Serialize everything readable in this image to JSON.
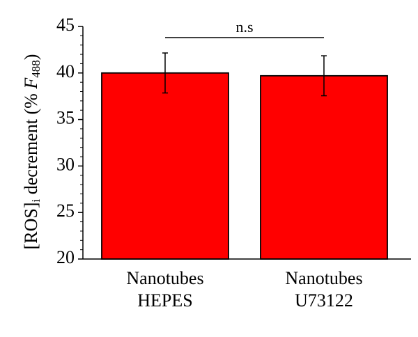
{
  "chart_data": {
    "type": "bar",
    "categories": [
      [
        "Nanotubes",
        "HEPES"
      ],
      [
        "Nanotubes",
        "U73122"
      ]
    ],
    "values": [
      40.0,
      39.7
    ],
    "errors": [
      2.15,
      2.15
    ],
    "ylim": [
      20,
      45
    ],
    "yticks": [
      20,
      25,
      30,
      35,
      40,
      45
    ],
    "ylabel": {
      "prefix": "[ROS]",
      "sub_i": "i",
      "middle": " decrement (% ",
      "F": "F",
      "sub_488": "488",
      "suffix": ")"
    },
    "annotation": "n.s",
    "colors": {
      "bar": "#ff0000",
      "edge": "#000000"
    },
    "grid": false
  }
}
